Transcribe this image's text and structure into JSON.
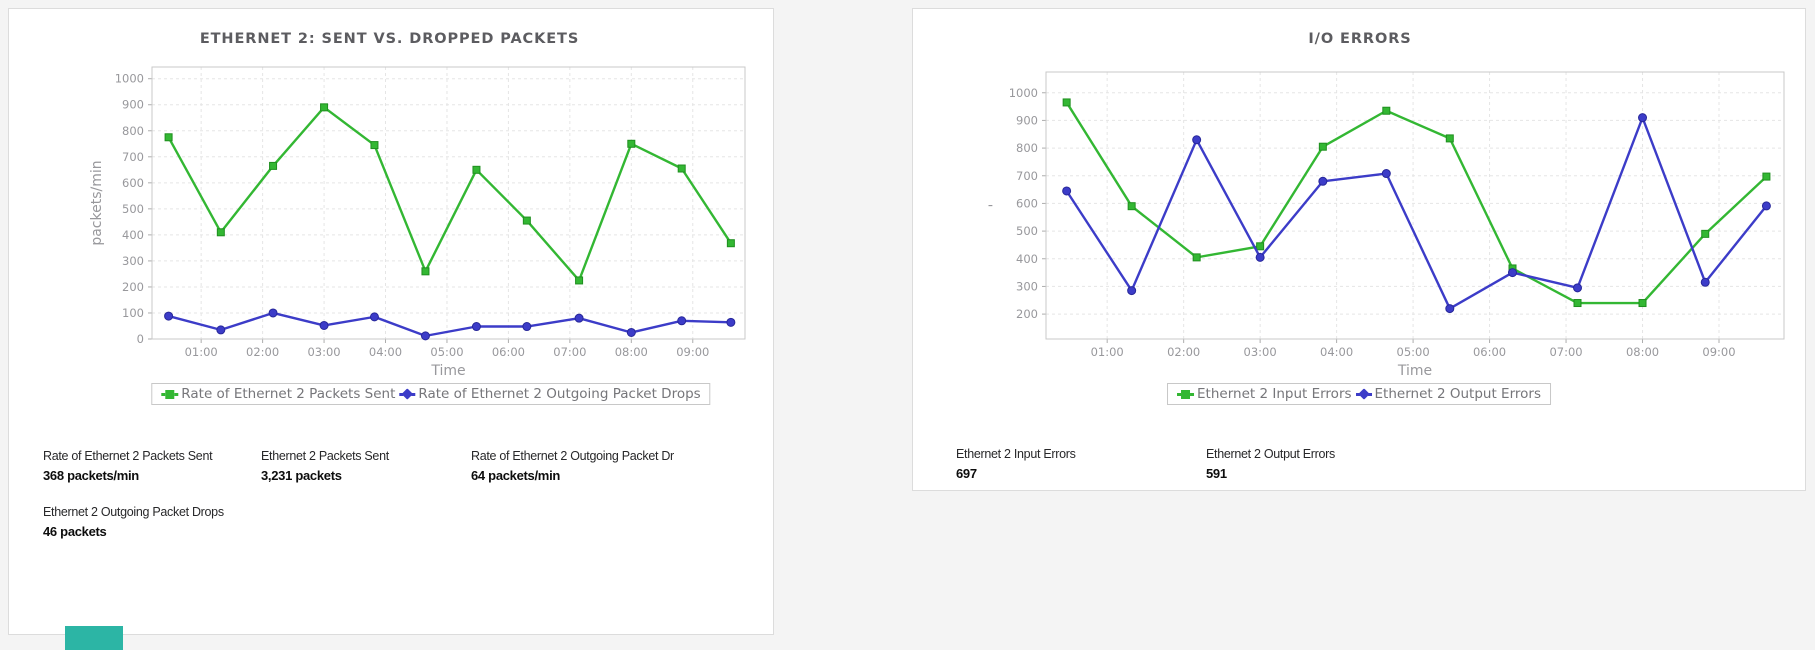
{
  "left_panel": {
    "title": "ETHERNET 2: SENT VS. DROPPED PACKETS",
    "legend": [
      {
        "label": "Rate of Ethernet 2 Packets Sent",
        "color": "#33b733",
        "marker": "square"
      },
      {
        "label": "Rate of Ethernet 2 Outgoing Packet Drops",
        "color": "#3c3cc8",
        "marker": "diamond"
      }
    ],
    "stats": [
      {
        "label": "Rate of Ethernet 2 Packets Sent",
        "value": "368 packets/min"
      },
      {
        "label": "Ethernet 2 Packets Sent",
        "value": "3,231 packets"
      },
      {
        "label": "Rate of Ethernet 2 Outgoing Packet Dr",
        "value": "64 packets/min"
      },
      {
        "label": "Ethernet 2 Outgoing Packet Drops",
        "value": "46 packets"
      }
    ],
    "accent_fragment_color": "#2cb5a5"
  },
  "right_panel": {
    "title": "I/O ERRORS",
    "legend": [
      {
        "label": "Ethernet 2 Input Errors",
        "color": "#33b733",
        "marker": "square"
      },
      {
        "label": "Ethernet 2 Output Errors",
        "color": "#3c3cc8",
        "marker": "diamond"
      }
    ],
    "stats": [
      {
        "label": "Ethernet 2 Input Errors",
        "value": "697"
      },
      {
        "label": "Ethernet 2 Output Errors",
        "value": "591"
      }
    ]
  },
  "chart_data": [
    {
      "type": "line",
      "title": "ETHERNET 2: SENT VS. DROPPED PACKETS",
      "xlabel": "Time",
      "ylabel": "packets/min",
      "x_ticks": [
        "01:00",
        "02:00",
        "03:00",
        "04:00",
        "05:00",
        "06:00",
        "07:00",
        "08:00",
        "09:00"
      ],
      "x_hours": [
        0.47,
        1.32,
        2.17,
        3.0,
        3.82,
        4.65,
        5.48,
        6.3,
        7.15,
        8.0,
        8.82,
        9.62
      ],
      "y_ticks": [
        0,
        100,
        200,
        300,
        400,
        500,
        600,
        700,
        800,
        900,
        1000
      ],
      "xlim": [
        0.2,
        9.85
      ],
      "ylim": [
        0,
        1045
      ],
      "grid": true,
      "legend_position": "bottom",
      "series": [
        {
          "name": "Rate of Ethernet 2 Packets Sent",
          "color": "#33b733",
          "marker_stroke": "#1f8f1f",
          "marker": "square",
          "values": [
            775,
            410,
            665,
            890,
            745,
            260,
            650,
            455,
            225,
            750,
            655,
            368
          ]
        },
        {
          "name": "Rate of Ethernet 2 Outgoing Packet Drops",
          "color": "#3c3cc8",
          "marker_stroke": "#27279a",
          "marker": "circle",
          "values": [
            88,
            35,
            100,
            52,
            85,
            12,
            48,
            48,
            80,
            25,
            70,
            64
          ]
        }
      ]
    },
    {
      "type": "line",
      "title": "I/O ERRORS",
      "xlabel": "Time",
      "ylabel": "'",
      "x_ticks": [
        "01:00",
        "02:00",
        "03:00",
        "04:00",
        "05:00",
        "06:00",
        "07:00",
        "08:00",
        "09:00"
      ],
      "x_hours": [
        0.47,
        1.32,
        2.17,
        3.0,
        3.82,
        4.65,
        5.48,
        6.3,
        7.15,
        8.0,
        8.82,
        9.62
      ],
      "y_ticks": [
        200,
        300,
        400,
        500,
        600,
        700,
        800,
        900,
        1000
      ],
      "xlim": [
        0.2,
        9.85
      ],
      "ylim": [
        110,
        1075
      ],
      "grid": true,
      "legend_position": "bottom",
      "series": [
        {
          "name": "Ethernet 2 Input Errors",
          "color": "#33b733",
          "marker_stroke": "#1f8f1f",
          "marker": "square",
          "values": [
            965,
            590,
            405,
            445,
            805,
            935,
            835,
            365,
            240,
            240,
            490,
            697
          ]
        },
        {
          "name": "Ethernet 2 Output Errors",
          "color": "#3c3cc8",
          "marker_stroke": "#27279a",
          "marker": "circle",
          "values": [
            645,
            285,
            830,
            405,
            680,
            708,
            220,
            350,
            295,
            910,
            315,
            591
          ]
        }
      ]
    }
  ]
}
